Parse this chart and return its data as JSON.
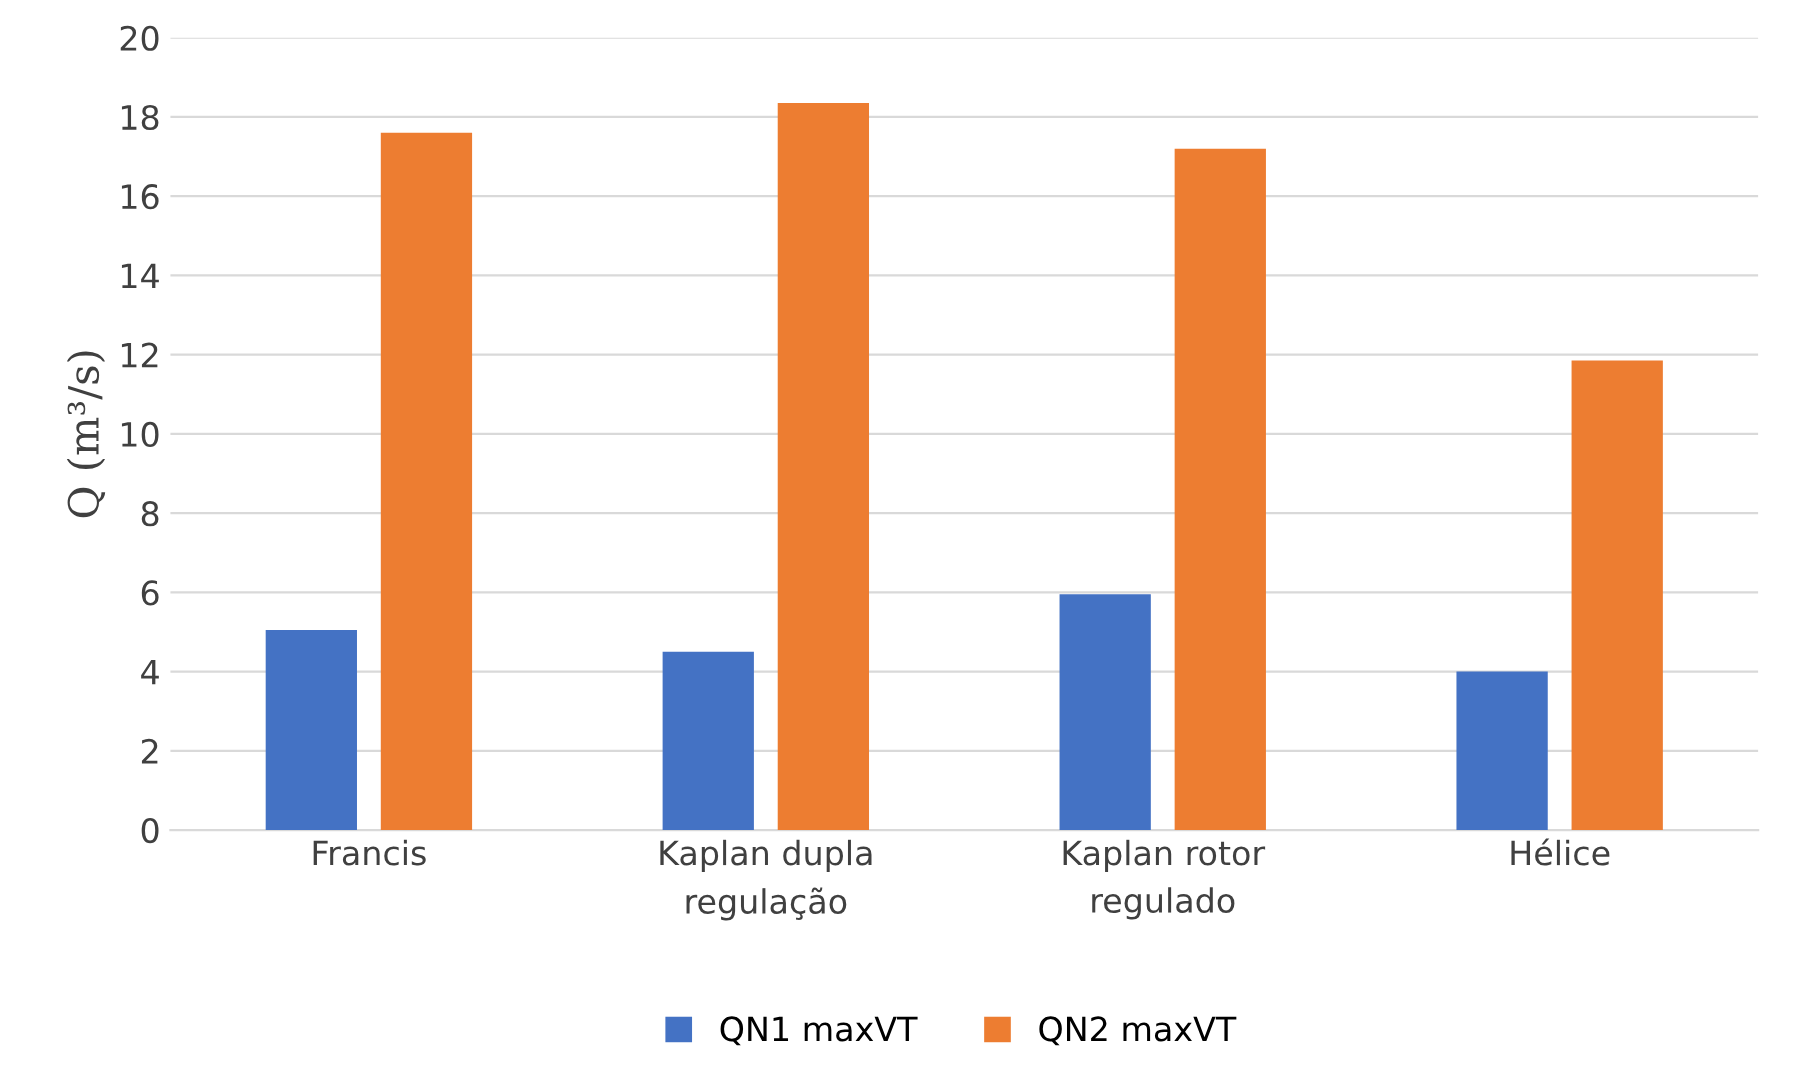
{
  "chart_data": {
    "type": "bar",
    "ylabel": "Q (m³/s)",
    "categories": [
      "Francis",
      "Kaplan dupla\nregulação",
      "Kaplan rotor\nregulado",
      "Hélice"
    ],
    "series": [
      {
        "name": "QN1 maxVT",
        "color": "#4472c4",
        "values": [
          5.05,
          4.5,
          5.95,
          4.0
        ]
      },
      {
        "name": "QN2 maxVT",
        "color": "#ed7d31",
        "values": [
          17.6,
          18.35,
          17.2,
          11.85
        ]
      }
    ],
    "ylim": [
      0,
      20
    ],
    "yticks": [
      0,
      2,
      4,
      6,
      8,
      10,
      12,
      14,
      16,
      18,
      20
    ],
    "grid": "y",
    "legend": "bottom"
  }
}
